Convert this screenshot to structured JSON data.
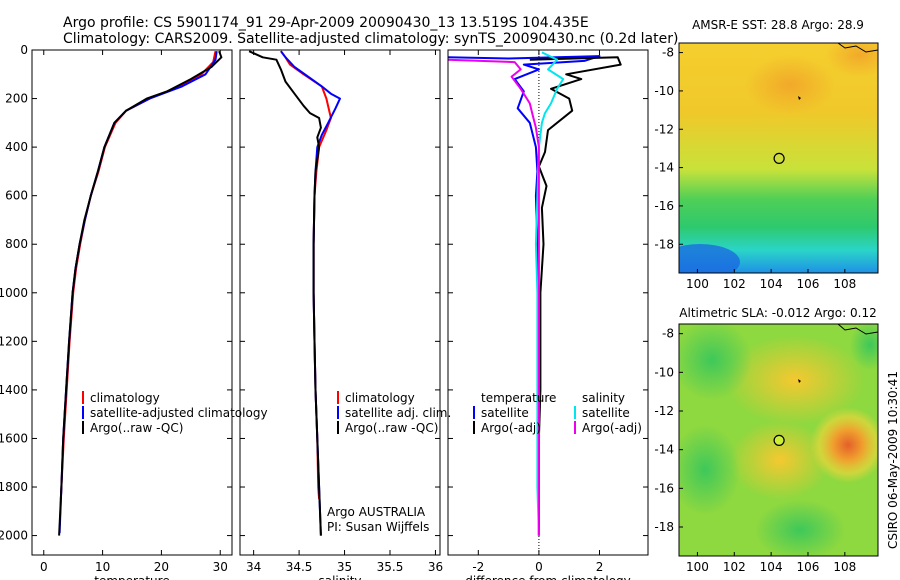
{
  "header": {
    "line1": "Argo profile: CS 5901174_91 29-Apr-2009 20090430_13 13.519S 104.435E",
    "line2": "Climatology: CARS2009. Satellite-adjusted climatology: synTS_20090430.nc (0.2d later)"
  },
  "footer": {
    "stamp": "CSIRO 06-May-2009 10:30:41"
  },
  "chart_data": [
    {
      "type": "line",
      "id": "temperature-panel",
      "xlabel": "temperature",
      "ylabel": "",
      "xlim": [
        -2,
        32
      ],
      "ylim": [
        2080,
        0
      ],
      "xticks": [
        0,
        10,
        20,
        30
      ],
      "xtick_labels": [
        "0",
        "10",
        "20",
        "30"
      ],
      "yticks": [
        0,
        200,
        400,
        600,
        800,
        1000,
        1200,
        1400,
        1600,
        1800,
        2000
      ],
      "ytick_labels": [
        "0",
        "200",
        "400",
        "600",
        "800",
        "1000",
        "1200",
        "1400",
        "1600",
        "1800",
        "2000"
      ],
      "legend": [
        "climatology",
        "satellite-adjusted climatology",
        "Argo(..raw -QC)"
      ],
      "series": [
        {
          "name": "climatology",
          "color": "#ff0000",
          "points": [
            [
              29.2,
              5
            ],
            [
              28.8,
              50
            ],
            [
              26.8,
              100
            ],
            [
              23,
              150
            ],
            [
              18,
              200
            ],
            [
              14,
              250
            ],
            [
              12.2,
              300
            ],
            [
              10.4,
              400
            ],
            [
              9.3,
              500
            ],
            [
              8,
              600
            ],
            [
              7,
              700
            ],
            [
              6.2,
              800
            ],
            [
              5.5,
              900
            ],
            [
              5,
              1000
            ],
            [
              4.4,
              1200
            ],
            [
              3.9,
              1400
            ],
            [
              3.4,
              1600
            ],
            [
              3.0,
              1800
            ],
            [
              2.9,
              1850
            ]
          ]
        },
        {
          "name": "satellite-adjusted climatology",
          "color": "#0000ff",
          "points": [
            [
              29.4,
              5
            ],
            [
              29.2,
              40
            ],
            [
              27.5,
              100
            ],
            [
              23.5,
              150
            ],
            [
              18,
              200
            ],
            [
              14,
              250
            ],
            [
              12,
              300
            ],
            [
              10.3,
              400
            ],
            [
              9.2,
              500
            ],
            [
              8,
              600
            ],
            [
              7,
              700
            ],
            [
              6.1,
              800
            ],
            [
              5.4,
              900
            ],
            [
              4.9,
              1000
            ],
            [
              4.3,
              1200
            ],
            [
              3.8,
              1400
            ],
            [
              3.3,
              1600
            ],
            [
              3.0,
              1800
            ],
            [
              2.7,
              1990
            ]
          ]
        },
        {
          "name": "Argo(..raw -QC)",
          "color": "#000000",
          "points": [
            [
              29.8,
              5
            ],
            [
              30.2,
              30
            ],
            [
              28.5,
              70
            ],
            [
              25,
              120
            ],
            [
              21,
              170
            ],
            [
              17.5,
              200
            ],
            [
              14,
              250
            ],
            [
              12,
              300
            ],
            [
              10.3,
              400
            ],
            [
              9.2,
              500
            ],
            [
              8,
              600
            ],
            [
              6.9,
              700
            ],
            [
              6.1,
              800
            ],
            [
              5.4,
              900
            ],
            [
              4.9,
              1000
            ],
            [
              4.3,
              1200
            ],
            [
              3.8,
              1400
            ],
            [
              3.3,
              1600
            ],
            [
              3.0,
              1800
            ],
            [
              2.6,
              2000
            ]
          ]
        }
      ]
    },
    {
      "type": "line",
      "id": "salinity-panel",
      "xlabel": "salinity",
      "ylabel": "",
      "xlim": [
        33.85,
        36.05
      ],
      "ylim": [
        2080,
        0
      ],
      "xticks": [
        34,
        34.5,
        35,
        35.5,
        36
      ],
      "xtick_labels": [
        "34",
        "34.5",
        "35",
        "35.5",
        "36"
      ],
      "legend": [
        "climatology",
        "satellite adj. clim.",
        "Argo(..raw -QC)"
      ],
      "annotations": [
        "Argo AUSTRALIA",
        "PI: Susan Wijffels"
      ],
      "series": [
        {
          "name": "climatology",
          "color": "#ff0000",
          "points": [
            [
              34.3,
              5
            ],
            [
              34.35,
              30
            ],
            [
              34.4,
              60
            ],
            [
              34.55,
              100
            ],
            [
              34.75,
              150
            ],
            [
              34.8,
              200
            ],
            [
              34.85,
              280
            ],
            [
              34.8,
              330
            ],
            [
              34.72,
              400
            ],
            [
              34.69,
              500
            ],
            [
              34.67,
              600
            ],
            [
              34.66,
              800
            ],
            [
              34.66,
              1000
            ],
            [
              34.67,
              1200
            ],
            [
              34.68,
              1400
            ],
            [
              34.7,
              1600
            ],
            [
              34.71,
              1800
            ],
            [
              34.72,
              1850
            ]
          ]
        },
        {
          "name": "satellite adj. clim.",
          "color": "#0000ff",
          "points": [
            [
              34.3,
              5
            ],
            [
              34.35,
              30
            ],
            [
              34.45,
              70
            ],
            [
              34.6,
              110
            ],
            [
              34.75,
              150
            ],
            [
              34.85,
              180
            ],
            [
              34.95,
              200
            ],
            [
              34.9,
              240
            ],
            [
              34.82,
              300
            ],
            [
              34.75,
              350
            ],
            [
              34.7,
              400
            ],
            [
              34.68,
              500
            ],
            [
              34.67,
              600
            ],
            [
              34.66,
              800
            ],
            [
              34.66,
              1000
            ],
            [
              34.67,
              1200
            ],
            [
              34.68,
              1400
            ],
            [
              34.7,
              1600
            ],
            [
              34.72,
              1800
            ],
            [
              34.74,
              2000
            ]
          ]
        },
        {
          "name": "Argo(..raw -QC)",
          "color": "#000000",
          "points": [
            [
              33.95,
              5
            ],
            [
              34.1,
              30
            ],
            [
              34.25,
              40
            ],
            [
              34.3,
              80
            ],
            [
              34.35,
              130
            ],
            [
              34.45,
              180
            ],
            [
              34.55,
              230
            ],
            [
              34.62,
              260
            ],
            [
              34.72,
              280
            ],
            [
              34.74,
              320
            ],
            [
              34.7,
              360
            ],
            [
              34.72,
              400
            ],
            [
              34.7,
              450
            ],
            [
              34.68,
              500
            ],
            [
              34.67,
              600
            ],
            [
              34.66,
              800
            ],
            [
              34.66,
              1000
            ],
            [
              34.67,
              1200
            ],
            [
              34.68,
              1400
            ],
            [
              34.7,
              1600
            ],
            [
              34.72,
              1800
            ],
            [
              34.74,
              2000
            ]
          ]
        }
      ]
    },
    {
      "type": "line",
      "id": "difference-panel",
      "xlabel": "difference from climatology",
      "ylabel": "",
      "xlim": [
        -3,
        3.6
      ],
      "ylim": [
        2080,
        0
      ],
      "xticks": [
        -2,
        0,
        2
      ],
      "xtick_labels": [
        "-2",
        "0",
        "2"
      ],
      "legend_headers": [
        "temperature",
        "salinity"
      ],
      "legend": [
        "satellite",
        "Argo(-adj)",
        "satellite",
        "Argo(-adj)"
      ],
      "series": [
        {
          "name": "satellite",
          "group": "temperature",
          "color": "#0000ff",
          "points": [
            [
              -3,
              30
            ],
            [
              -1,
              35
            ],
            [
              2,
              25
            ],
            [
              1.5,
              45
            ],
            [
              -0.5,
              60
            ],
            [
              0,
              80
            ],
            [
              -0.8,
              120
            ],
            [
              -0.5,
              170
            ],
            [
              -0.7,
              240
            ],
            [
              -0.3,
              300
            ],
            [
              -0.1,
              400
            ],
            [
              -0.05,
              500
            ],
            [
              -0.1,
              600
            ],
            [
              -0.05,
              800
            ],
            [
              0,
              1000
            ],
            [
              0,
              1200
            ],
            [
              0,
              1400
            ],
            [
              0,
              1600
            ],
            [
              0,
              1800
            ],
            [
              0,
              2000
            ]
          ]
        },
        {
          "name": "Argo(-adj)",
          "group": "temperature",
          "color": "#000000",
          "points": [
            [
              -0.3,
              40
            ],
            [
              2.6,
              30
            ],
            [
              2.7,
              60
            ],
            [
              0.9,
              100
            ],
            [
              1.4,
              120
            ],
            [
              0.4,
              160
            ],
            [
              1,
              200
            ],
            [
              1.1,
              250
            ],
            [
              0.3,
              330
            ],
            [
              0.2,
              420
            ],
            [
              0,
              480
            ],
            [
              0.25,
              560
            ],
            [
              0.1,
              650
            ],
            [
              0.15,
              800
            ],
            [
              0.05,
              1000
            ],
            [
              0.05,
              1200
            ],
            [
              0.05,
              1400
            ],
            [
              0,
              1600
            ],
            [
              0,
              1800
            ],
            [
              0,
              2000
            ]
          ]
        },
        {
          "name": "satellite",
          "group": "salinity",
          "color": "#00e5ee",
          "points": [
            [
              0.1,
              10
            ],
            [
              0.6,
              40
            ],
            [
              0.3,
              80
            ],
            [
              0.8,
              120
            ],
            [
              0.6,
              160
            ],
            [
              0.4,
              220
            ],
            [
              0.2,
              260
            ],
            [
              0.1,
              300
            ],
            [
              0,
              400
            ],
            [
              -0.05,
              600
            ],
            [
              -0.1,
              800
            ],
            [
              -0.05,
              1000
            ],
            [
              -0.05,
              1200
            ],
            [
              -0.05,
              1400
            ],
            [
              -0.05,
              1600
            ],
            [
              -0.05,
              1800
            ],
            [
              0,
              2000
            ]
          ]
        },
        {
          "name": "Argo(-adj)",
          "group": "salinity",
          "color": "#ee00ee",
          "points": [
            [
              -3,
              40
            ],
            [
              -0.8,
              50
            ],
            [
              -0.6,
              80
            ],
            [
              -0.9,
              110
            ],
            [
              -0.6,
              160
            ],
            [
              -0.3,
              220
            ],
            [
              -0.2,
              270
            ],
            [
              -0.1,
              320
            ],
            [
              0,
              400
            ],
            [
              0,
              800
            ],
            [
              0,
              1200
            ],
            [
              0,
              2000
            ]
          ]
        }
      ]
    },
    {
      "type": "heatmap",
      "id": "sst-map",
      "title": "AMSR-E SST: 28.8 Argo: 28.9",
      "xlim": [
        99,
        109.8
      ],
      "ylim": [
        -19.5,
        -7.5
      ],
      "xticks": [
        100,
        102,
        104,
        106,
        108
      ],
      "xtick_labels": [
        "100",
        "102",
        "104",
        "106",
        "108"
      ],
      "yticks": [
        -8,
        -10,
        -12,
        -14,
        -16,
        -18
      ],
      "ytick_labels": [
        "-8",
        "-10",
        "-12",
        "-14",
        "-16",
        "-18"
      ],
      "marker": {
        "lon": 104.435,
        "lat": -13.519,
        "fill": "none"
      }
    },
    {
      "type": "heatmap",
      "id": "sla-map",
      "title": "Altimetric SLA: -0.012 Argo: 0.12",
      "xlim": [
        99,
        109.8
      ],
      "ylim": [
        -19.5,
        -7.5
      ],
      "xticks": [
        100,
        102,
        104,
        106,
        108
      ],
      "xtick_labels": [
        "100",
        "102",
        "104",
        "106",
        "108"
      ],
      "yticks": [
        -8,
        -10,
        -12,
        -14,
        -16,
        -18
      ],
      "ytick_labels": [
        "-8",
        "-10",
        "-12",
        "-14",
        "-16",
        "-18"
      ],
      "marker": {
        "lon": 104.435,
        "lat": -13.519,
        "fill": "#ccee33"
      }
    }
  ]
}
